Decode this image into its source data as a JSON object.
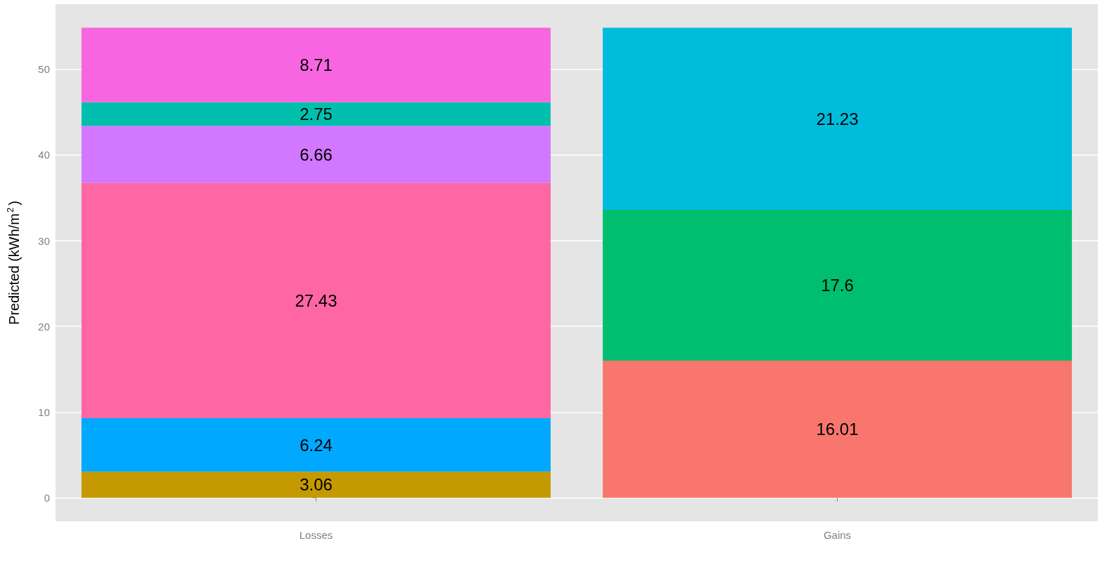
{
  "chart_data": {
    "type": "bar",
    "ylabel": "Predicted (kWh/m$^{2}$)",
    "categories": [
      "Losses",
      "Gains"
    ],
    "stacked": true,
    "data_labels": true,
    "grid": true,
    "series": [
      {
        "color": "#c49a00",
        "values": [
          3.06,
          null
        ]
      },
      {
        "color": "#00a9ff",
        "values": [
          6.24,
          null
        ]
      },
      {
        "color": "#ff67a4",
        "values": [
          27.43,
          null
        ]
      },
      {
        "color": "#d277ff",
        "values": [
          6.66,
          null
        ]
      },
      {
        "color": "#00c0ad",
        "values": [
          2.75,
          null
        ]
      },
      {
        "color": "#f766e0",
        "values": [
          8.71,
          null
        ]
      },
      {
        "color": "#f8766d",
        "values": [
          null,
          16.01
        ]
      },
      {
        "color": "#00be70",
        "values": [
          null,
          17.6
        ]
      },
      {
        "color": "#00bcdc",
        "values": [
          null,
          21.23
        ]
      }
    ],
    "ylim": [
      -2.74,
      57.59
    ],
    "yticks": [
      0,
      10,
      20,
      30,
      40,
      50
    ]
  }
}
